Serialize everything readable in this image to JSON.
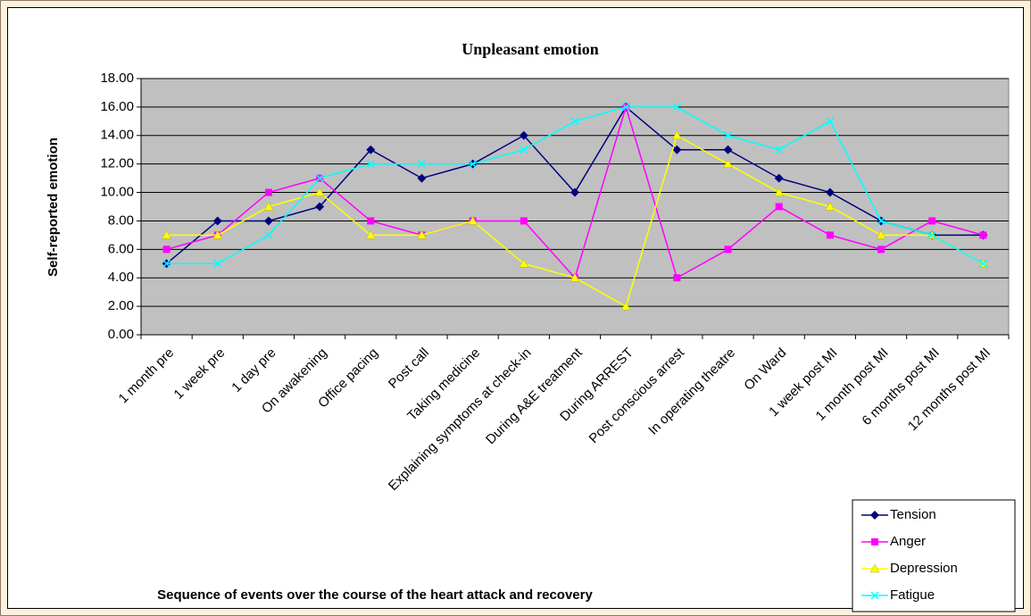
{
  "chart_data": {
    "type": "line",
    "title": "Unpleasant emotion",
    "x_label": "Sequence of events over the course of the heart attack and recovery",
    "y_label": "Self-reported emotion",
    "categories": [
      "1 month pre",
      "1 week pre",
      "1 day pre",
      "On awakening",
      "Office pacing",
      "Post call",
      "Taking medicine",
      "Explaining symptoms at check-in",
      "During A&E treatment",
      "During ARREST",
      "Post conscious arrest",
      "In operating theatre",
      "On Ward",
      "1 week post MI",
      "1 month post MI",
      "6 months post MI",
      "12 months post MI"
    ],
    "series": [
      {
        "name": "Tension",
        "color": "#000080",
        "marker": "diamond",
        "values": [
          5,
          8,
          8,
          9,
          13,
          11,
          12,
          14,
          10,
          16,
          13,
          13,
          11,
          10,
          8,
          7,
          7
        ]
      },
      {
        "name": "Anger",
        "color": "#ff00ff",
        "marker": "square",
        "values": [
          6,
          7,
          10,
          11,
          8,
          7,
          8,
          8,
          4,
          16,
          4,
          6,
          9,
          7,
          6,
          8,
          7
        ]
      },
      {
        "name": "Depression",
        "color": "#ffff00",
        "marker": "triangle",
        "values": [
          7,
          7,
          9,
          10,
          7,
          7,
          8,
          5,
          4,
          2,
          14,
          12,
          10,
          9,
          7,
          7,
          5
        ]
      },
      {
        "name": "Fatigue",
        "color": "#00ffff",
        "marker": "x",
        "values": [
          5,
          5,
          7,
          11,
          12,
          12,
          12,
          13,
          15,
          16,
          16,
          14,
          13,
          15,
          8,
          7,
          5
        ]
      }
    ],
    "ylim": [
      0,
      18
    ],
    "yticks": [
      {
        "value": 0,
        "label": "0.00"
      },
      {
        "value": 2,
        "label": "2.00"
      },
      {
        "value": 4,
        "label": "4.00"
      },
      {
        "value": 6,
        "label": "6.00"
      },
      {
        "value": 8,
        "label": "8.00"
      },
      {
        "value": 10,
        "label": "10.00"
      },
      {
        "value": 12,
        "label": "12.00"
      },
      {
        "value": 14,
        "label": "14.00"
      },
      {
        "value": 16,
        "label": "16.00"
      },
      {
        "value": 18,
        "label": "18.00"
      }
    ],
    "grid": true,
    "plot_background": "#c0c0c0",
    "legend_position": "lower right"
  }
}
